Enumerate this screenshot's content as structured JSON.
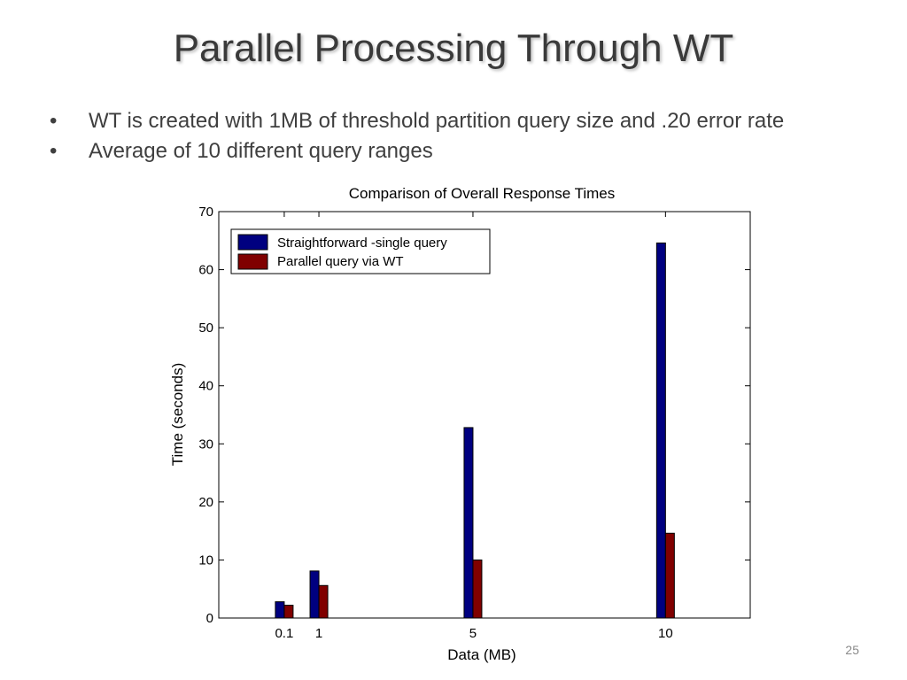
{
  "slide": {
    "title": "Parallel Processing Through WT",
    "bullets": [
      "WT is created with 1MB of threshold partition query size and .20 error rate",
      "Average of 10 different query ranges"
    ],
    "bullet_symbol": "•",
    "page_number": "25"
  },
  "chart_data": {
    "type": "bar",
    "title": "Comparison of Overall Response Times",
    "xlabel": "Data (MB)",
    "ylabel": "Time (seconds)",
    "x": [
      0.1,
      1,
      5,
      10
    ],
    "categories": [
      "0.1",
      "1",
      "5",
      "10"
    ],
    "xlim": [
      -1.6,
      12.2
    ],
    "ylim": [
      0,
      70
    ],
    "yticks": [
      0,
      10,
      20,
      30,
      40,
      50,
      60,
      70
    ],
    "grid": false,
    "legend_position": "top-left",
    "series": [
      {
        "name": "Straightforward -single query",
        "color": "#000080",
        "values": [
          2.8,
          8.1,
          32.8,
          64.6
        ]
      },
      {
        "name": "Parallel query via WT",
        "color": "#800000",
        "values": [
          2.2,
          5.6,
          10.0,
          14.6
        ]
      }
    ]
  }
}
